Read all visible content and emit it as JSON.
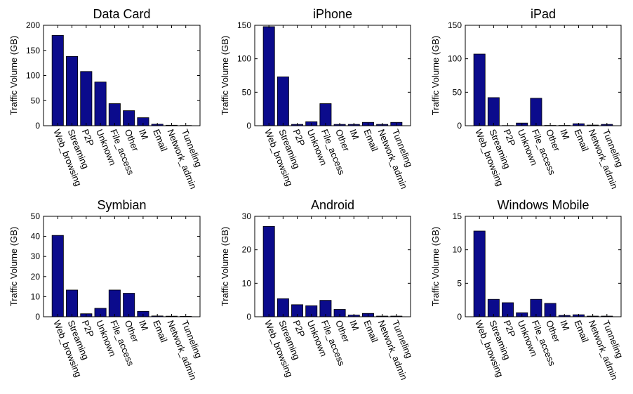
{
  "figure": {
    "colors": {
      "bar": "#0b0b8c",
      "axis": "#000000"
    }
  },
  "chart_data": [
    {
      "type": "bar",
      "title": "Data Card",
      "ylabel": "Traffic Volume (GB)",
      "xlabel": "",
      "ylim": [
        0,
        200
      ],
      "yticks": [
        0,
        50,
        100,
        150,
        200
      ],
      "categories": [
        "Web_browsing",
        "Streaming",
        "P2P",
        "Unknown",
        "File_access",
        "Other",
        "IM",
        "Email",
        "Network_admin",
        "Tunneling"
      ],
      "values": [
        180,
        138,
        108,
        87,
        44,
        30,
        16,
        3,
        1,
        0.5
      ]
    },
    {
      "type": "bar",
      "title": "iPhone",
      "ylabel": "Traffic Volume (GB)",
      "xlabel": "",
      "ylim": [
        0,
        150
      ],
      "yticks": [
        0,
        50,
        100,
        150
      ],
      "categories": [
        "Web_browsing",
        "Streaming",
        "P2P",
        "Unknown",
        "File_access",
        "Other",
        "IM",
        "Email",
        "Network_admin",
        "Tunneling"
      ],
      "values": [
        148,
        73,
        2,
        6,
        33,
        2,
        2,
        5,
        2,
        5
      ]
    },
    {
      "type": "bar",
      "title": "iPad",
      "ylabel": "Traffic Volume (GB)",
      "xlabel": "",
      "ylim": [
        0,
        150
      ],
      "yticks": [
        0,
        50,
        100,
        150
      ],
      "categories": [
        "Web_browsing",
        "Streaming",
        "P2P",
        "Unknown",
        "File_access",
        "Other",
        "IM",
        "Email",
        "Network_admin",
        "Tunneling"
      ],
      "values": [
        107,
        42,
        0.3,
        4,
        41,
        0.5,
        0.5,
        3,
        1,
        2
      ]
    },
    {
      "type": "bar",
      "title": "Symbian",
      "ylabel": "Traffic Volume (GB)",
      "xlabel": "",
      "ylim": [
        0,
        50
      ],
      "yticks": [
        0,
        10,
        20,
        30,
        40,
        50
      ],
      "categories": [
        "Web_browsing",
        "Streaming",
        "P2P",
        "Unknown",
        "File_access",
        "Other",
        "IM",
        "Email",
        "Network_admin",
        "Tunneling"
      ],
      "values": [
        40.5,
        13.3,
        1.5,
        4.2,
        13.3,
        11.7,
        2.7,
        0.4,
        0.3,
        0.2
      ]
    },
    {
      "type": "bar",
      "title": "Android",
      "ylabel": "Traffic Volume (GB)",
      "xlabel": "",
      "ylim": [
        0,
        30
      ],
      "yticks": [
        0,
        10,
        20,
        30
      ],
      "categories": [
        "Web_browsing",
        "Streaming",
        "P2P",
        "Unknown",
        "File_access",
        "Other",
        "IM",
        "Email",
        "Network_admin",
        "Tunneling"
      ],
      "values": [
        27,
        5.4,
        3.6,
        3.3,
        4.9,
        2.2,
        0.5,
        1.0,
        0.2,
        0.2
      ]
    },
    {
      "type": "bar",
      "title": "Windows Mobile",
      "ylabel": "Traffic Volume (GB)",
      "xlabel": "",
      "ylim": [
        0,
        15
      ],
      "yticks": [
        0,
        5,
        10,
        15
      ],
      "categories": [
        "Web_browsing",
        "Streaming",
        "P2P",
        "Unknown",
        "File_access",
        "Other",
        "IM",
        "Email",
        "Network_admin",
        "Tunneling"
      ],
      "values": [
        12.8,
        2.6,
        2.1,
        0.6,
        2.6,
        2.0,
        0.2,
        0.3,
        0.1,
        0.1
      ]
    }
  ]
}
